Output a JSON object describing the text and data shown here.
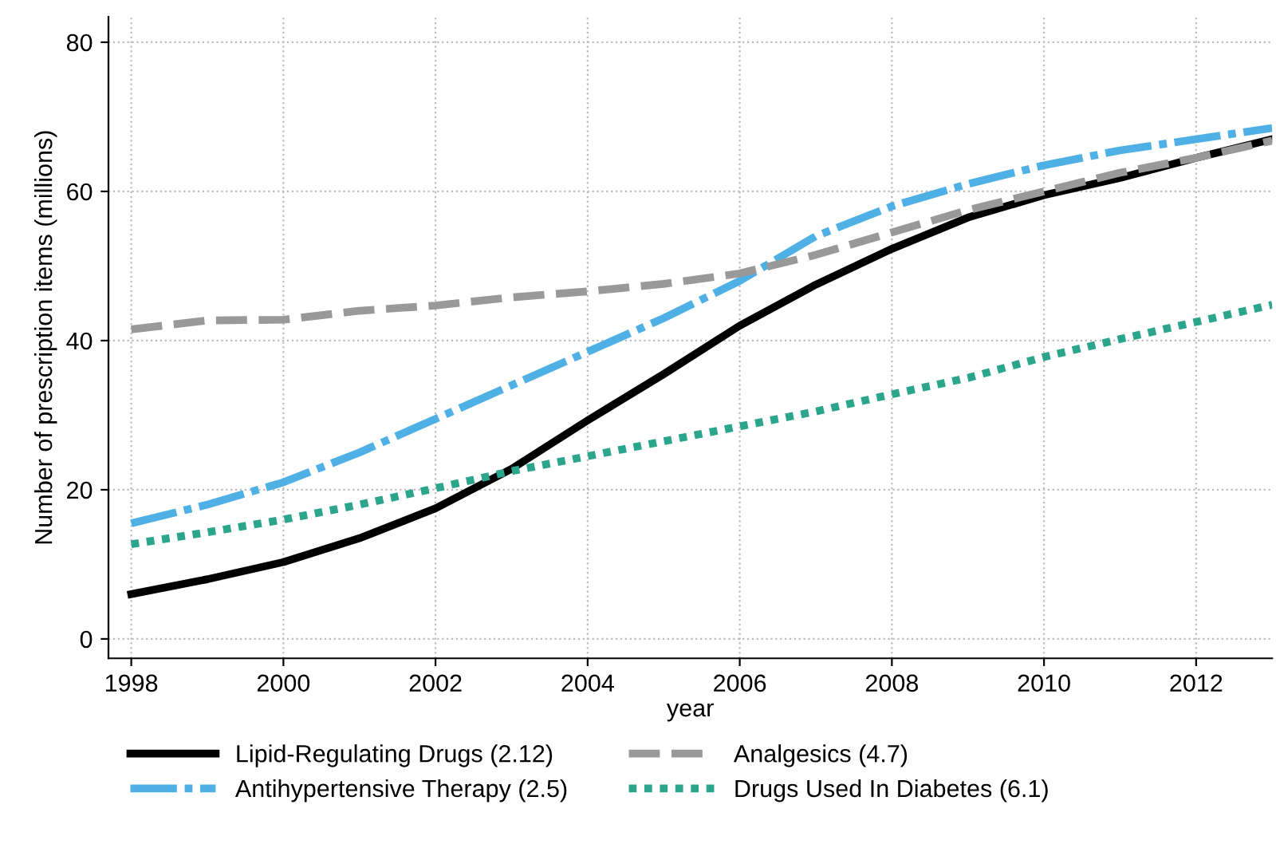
{
  "chart_data": {
    "type": "line",
    "xlabel": "year",
    "ylabel": "Number of prescription items (millions)",
    "x": [
      1998,
      1999,
      2000,
      2001,
      2002,
      2003,
      2004,
      2005,
      2006,
      2007,
      2008,
      2009,
      2010,
      2011,
      2012,
      2013
    ],
    "series": [
      {
        "name": "Lipid-Regulating Drugs (2.12)",
        "color": "#000000",
        "line_style": "solid",
        "values": [
          6,
          8,
          10.3,
          13.5,
          17.5,
          22.8,
          29.3,
          35.5,
          42,
          47.5,
          52.3,
          56.5,
          59.5,
          61.8,
          64.5,
          67
        ]
      },
      {
        "name": "Antihypertensive Therapy (2.5)",
        "color": "#4eb0e4",
        "line_style": "dashdot",
        "values": [
          15.5,
          18,
          21,
          25,
          29.5,
          34,
          38.5,
          43,
          48,
          54,
          58,
          61,
          63.5,
          65.5,
          67,
          68.5
        ]
      },
      {
        "name": "Analgesics (4.7)",
        "color": "#999999",
        "line_style": "dashed",
        "values": [
          41.5,
          42.7,
          42.8,
          44,
          44.7,
          45.8,
          46.6,
          47.6,
          49,
          51.5,
          54.5,
          57.5,
          60,
          62.5,
          64.5,
          66.8
        ]
      },
      {
        "name": "Drugs Used In Diabetes (6.1)",
        "color": "#2ca58d",
        "line_style": "dotted",
        "values": [
          12.7,
          14.3,
          16,
          18,
          20.2,
          22.5,
          24.5,
          26.5,
          28.5,
          30.5,
          32.8,
          35,
          37.8,
          40.2,
          42.5,
          44.8
        ]
      }
    ],
    "xlim": [
      1997.7,
      2013
    ],
    "ylim": [
      -2.6,
      83.4
    ],
    "xticks": [
      1998,
      2000,
      2002,
      2004,
      2006,
      2008,
      2010,
      2012
    ],
    "yticks": [
      0,
      20,
      40,
      60,
      80
    ],
    "grid": true,
    "legend": "bottom"
  }
}
